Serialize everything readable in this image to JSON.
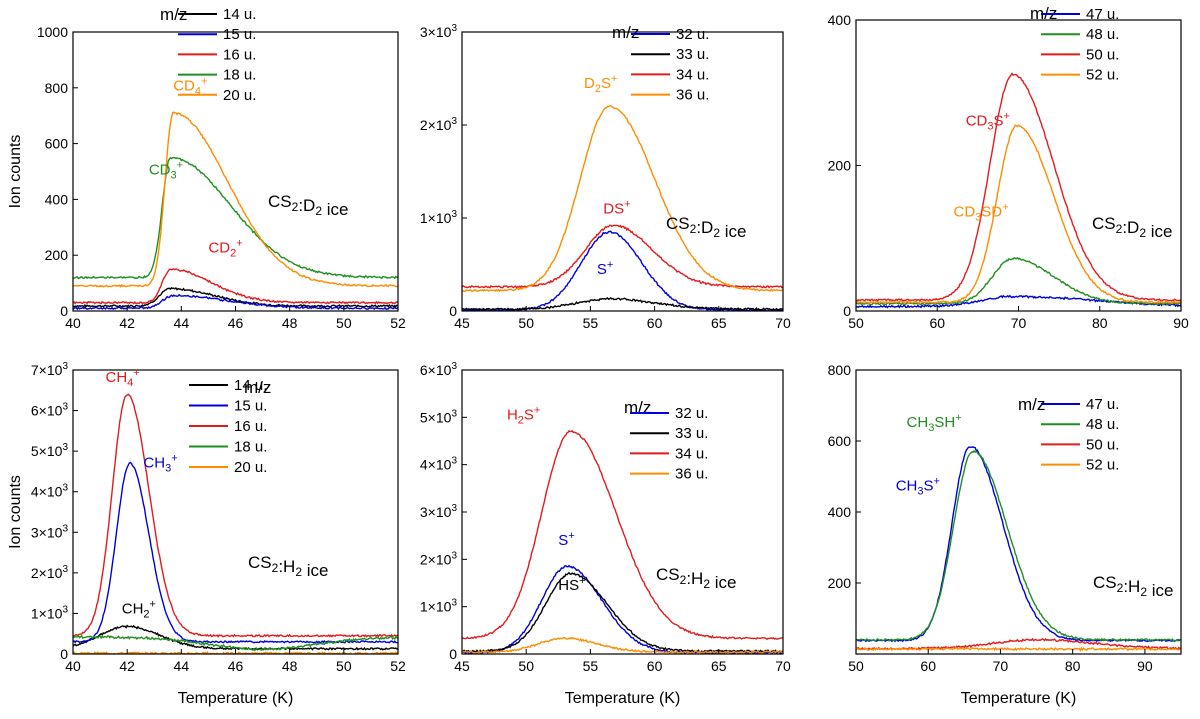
{
  "colors": {
    "black": "#000000",
    "blue": "#0000dd",
    "red": "#e41a1c",
    "green": "#1f8f1f",
    "orange": "#ff8c00"
  },
  "chart_data": [
    {
      "type": "line",
      "id": "a",
      "title": "",
      "xlabel": "",
      "ylabel": "Ion counts",
      "xlim": [
        40,
        52
      ],
      "ylim": [
        0,
        1000
      ],
      "xticks": [
        "40",
        "42",
        "44",
        "46",
        "48",
        "50",
        "52"
      ],
      "yticks": [
        "0",
        "200",
        "400",
        "600",
        "800",
        "1000"
      ],
      "legend_title": "m/z",
      "sample_label": "CS₂:D₂ ice",
      "series": [
        {
          "name": "14 u.",
          "color": "black",
          "peak_x": 43.6,
          "peak_y": 80,
          "base": 18,
          "w_l": 0.4,
          "w_r": 1.6
        },
        {
          "name": "15 u.",
          "color": "blue",
          "peak_x": 43.7,
          "peak_y": 55,
          "base": 10,
          "w_l": 0.4,
          "w_r": 2.0
        },
        {
          "name": "16 u.",
          "color": "red",
          "peak_x": 43.6,
          "peak_y": 150,
          "base": 30,
          "w_l": 0.3,
          "w_r": 1.5
        },
        {
          "name": "18 u.",
          "color": "green",
          "peak_x": 43.6,
          "peak_y": 550,
          "base": 120,
          "w_l": 0.3,
          "w_r": 2.2
        },
        {
          "name": "20 u.",
          "color": "orange",
          "peak_x": 43.7,
          "peak_y": 710,
          "base": 90,
          "w_l": 0.3,
          "w_r": 2.0
        }
      ],
      "annotations": [
        {
          "base": "CD",
          "sub": "4",
          "sup": "+",
          "color": "orange",
          "x": 43.7,
          "y": 790
        },
        {
          "base": "CD",
          "sub": "3",
          "sup": "+",
          "color": "green",
          "x": 42.8,
          "y": 490
        },
        {
          "base": "CD",
          "sub": "2",
          "sup": "+",
          "color": "red",
          "x": 45.0,
          "y": 210
        }
      ]
    },
    {
      "type": "line",
      "id": "b",
      "title": "",
      "xlabel": "",
      "ylabel": "",
      "xlim": [
        45,
        70
      ],
      "ylim": [
        0,
        3000
      ],
      "xticks": [
        "45",
        "50",
        "55",
        "60",
        "65",
        "70"
      ],
      "yticks": [
        "0",
        "1×10³",
        "2×10³",
        "3×10³"
      ],
      "legend_title": "m/z",
      "sample_label": "CS₂:D₂ ice",
      "series": [
        {
          "name": "32 u.",
          "color": "blue",
          "peak_x": 56.5,
          "peak_y": 850,
          "base": 10,
          "w_l": 2.2,
          "w_r": 2.5
        },
        {
          "name": "33 u.",
          "color": "black",
          "peak_x": 56.5,
          "peak_y": 130,
          "base": 20,
          "w_l": 2.5,
          "w_r": 3.5
        },
        {
          "name": "34 u.",
          "color": "red",
          "peak_x": 56.8,
          "peak_y": 920,
          "base": 260,
          "w_l": 2.2,
          "w_r": 3.0
        },
        {
          "name": "36 u.",
          "color": "orange",
          "peak_x": 56.5,
          "peak_y": 2200,
          "base": 220,
          "w_l": 2.3,
          "w_r": 3.5
        }
      ],
      "annotations": [
        {
          "base": "D",
          "sub": "2",
          "sup": "S+",
          "color": "orange",
          "x": 54.5,
          "y": 2400
        },
        {
          "base": "DS",
          "sub": "",
          "sup": "+",
          "color": "red",
          "x": 56.0,
          "y": 1050
        },
        {
          "base": "S",
          "sub": "",
          "sup": "+",
          "color": "blue",
          "x": 55.5,
          "y": 400
        }
      ]
    },
    {
      "type": "line",
      "id": "c",
      "title": "",
      "xlabel": "",
      "ylabel": "",
      "xlim": [
        50,
        90
      ],
      "ylim": [
        0,
        400
      ],
      "xticks": [
        "50",
        "60",
        "70",
        "80",
        "90"
      ],
      "yticks": [
        "0",
        "200",
        "400"
      ],
      "legend_title": "m/z",
      "sample_label": "CS₂:D₂ ice",
      "series": [
        {
          "name": "47 u.",
          "color": "blue",
          "peak_x": 69.5,
          "peak_y": 20,
          "base": 6,
          "w_l": 4.0,
          "w_r": 10.0
        },
        {
          "name": "48 u.",
          "color": "green",
          "peak_x": 69.3,
          "peak_y": 72,
          "base": 10,
          "w_l": 2.5,
          "w_r": 5.0
        },
        {
          "name": "50 u.",
          "color": "red",
          "peak_x": 69.3,
          "peak_y": 325,
          "base": 15,
          "w_l": 2.8,
          "w_r": 5.0
        },
        {
          "name": "52 u.",
          "color": "orange",
          "peak_x": 69.8,
          "peak_y": 255,
          "base": 12,
          "w_l": 2.4,
          "w_r": 4.5
        }
      ],
      "annotations": [
        {
          "base": "CD",
          "sub": "3",
          "sup": "S+",
          "color": "red",
          "x": 63.5,
          "y": 255
        },
        {
          "base": "CD",
          "sub": "3",
          "sup": "SD+",
          "color": "orange",
          "x": 62.0,
          "y": 130
        }
      ]
    },
    {
      "type": "line",
      "id": "d",
      "title": "",
      "xlabel": "Temperature (K)",
      "ylabel": "Ion counts",
      "xlim": [
        40,
        52
      ],
      "ylim": [
        0,
        7000
      ],
      "xticks": [
        "40",
        "42",
        "44",
        "46",
        "48",
        "50",
        "52"
      ],
      "yticks": [
        "0",
        "1×10³",
        "2×10³",
        "3×10³",
        "4×10³",
        "5×10³",
        "6×10³",
        "7×10³"
      ],
      "legend_title": "m/z",
      "sample_label": "CS₂:H₂ ice",
      "series": [
        {
          "name": "14 u.",
          "color": "black",
          "peak_x": 42.0,
          "peak_y": 680,
          "base": 130,
          "w_l": 1.0,
          "w_r": 1.2
        },
        {
          "name": "15 u.",
          "color": "blue",
          "peak_x": 42.1,
          "peak_y": 4700,
          "base": 300,
          "w_l": 0.5,
          "w_r": 0.7
        },
        {
          "name": "16 u.",
          "color": "red",
          "peak_x": 42.0,
          "peak_y": 6400,
          "base": 450,
          "w_l": 0.55,
          "w_r": 0.8
        },
        {
          "name": "18 u.",
          "color": "green",
          "peak_x": 47.0,
          "peak_y": 120,
          "base": 420,
          "w_l": 2.0,
          "w_r": 2.0
        },
        {
          "name": "20 u.",
          "color": "orange",
          "peak_x": 42.0,
          "peak_y": 20,
          "base": 15,
          "w_l": 1.0,
          "w_r": 1.0
        }
      ],
      "annotations": [
        {
          "base": "CH",
          "sub": "4",
          "sup": "+",
          "color": "red",
          "x": 41.2,
          "y": 6700
        },
        {
          "base": "CH",
          "sub": "3",
          "sup": "+",
          "color": "blue",
          "x": 42.6,
          "y": 4600
        },
        {
          "base": "CH",
          "sub": "2",
          "sup": "+",
          "color": "black",
          "x": 41.8,
          "y": 1000
        }
      ]
    },
    {
      "type": "line",
      "id": "e",
      "title": "",
      "xlabel": "Temperature (K)",
      "ylabel": "",
      "xlim": [
        45,
        70
      ],
      "ylim": [
        0,
        6000
      ],
      "xticks": [
        "45",
        "50",
        "55",
        "60",
        "65",
        "70"
      ],
      "yticks": [
        "0",
        "1×10³",
        "2×10³",
        "3×10³",
        "4×10³",
        "5×10³",
        "6×10³"
      ],
      "legend_title": "m/z",
      "sample_label": "CS₂:H₂ ice",
      "series": [
        {
          "name": "32 u.",
          "color": "blue",
          "peak_x": 53.2,
          "peak_y": 1850,
          "base": 30,
          "w_l": 2.0,
          "w_r": 2.7
        },
        {
          "name": "33 u.",
          "color": "black",
          "peak_x": 53.5,
          "peak_y": 1700,
          "base": 60,
          "w_l": 2.0,
          "w_r": 2.8
        },
        {
          "name": "34 u.",
          "color": "red",
          "peak_x": 53.5,
          "peak_y": 4700,
          "base": 330,
          "w_l": 2.3,
          "w_r": 3.5
        },
        {
          "name": "36 u.",
          "color": "orange",
          "peak_x": 53.0,
          "peak_y": 330,
          "base": 40,
          "w_l": 2.0,
          "w_r": 2.5
        }
      ],
      "annotations": [
        {
          "base": "H",
          "sub": "2",
          "sup": "S+",
          "color": "red",
          "x": 48.5,
          "y": 4950
        },
        {
          "base": "S",
          "sub": "",
          "sup": "+",
          "color": "blue",
          "x": 52.5,
          "y": 2300
        },
        {
          "base": "HS",
          "sub": "",
          "sup": "+",
          "color": "black",
          "x": 52.5,
          "y": 1350
        }
      ]
    },
    {
      "type": "line",
      "id": "f",
      "title": "",
      "xlabel": "Temperature (K)",
      "ylabel": "",
      "xlim": [
        50,
        95
      ],
      "ylim": [
        0,
        800
      ],
      "xticks": [
        "50",
        "60",
        "70",
        "80",
        "90"
      ],
      "yticks": [
        "200",
        "400",
        "600",
        "800"
      ],
      "legend_title": "m/z",
      "sample_label": "CS₂:H₂ ice",
      "series": [
        {
          "name": "47 u.",
          "color": "blue",
          "peak_x": 65.8,
          "peak_y": 585,
          "base": 38,
          "w_l": 2.5,
          "w_r": 4.5
        },
        {
          "name": "48 u.",
          "color": "green",
          "peak_x": 66.2,
          "peak_y": 570,
          "base": 40,
          "w_l": 2.7,
          "w_r": 4.7
        },
        {
          "name": "50 u.",
          "color": "red",
          "peak_x": 75.0,
          "peak_y": 40,
          "base": 15,
          "w_l": 6.0,
          "w_r": 8.0
        },
        {
          "name": "52 u.",
          "color": "orange",
          "peak_x": 66.0,
          "peak_y": 15,
          "base": 14,
          "w_l": 3.0,
          "w_r": 3.0
        }
      ],
      "annotations": [
        {
          "base": "CH",
          "sub": "3",
          "sup": "SH+",
          "color": "green",
          "x": 57.0,
          "y": 640
        },
        {
          "base": "CH",
          "sub": "3",
          "sup": "S+",
          "color": "blue",
          "x": 55.5,
          "y": 460
        }
      ]
    }
  ]
}
